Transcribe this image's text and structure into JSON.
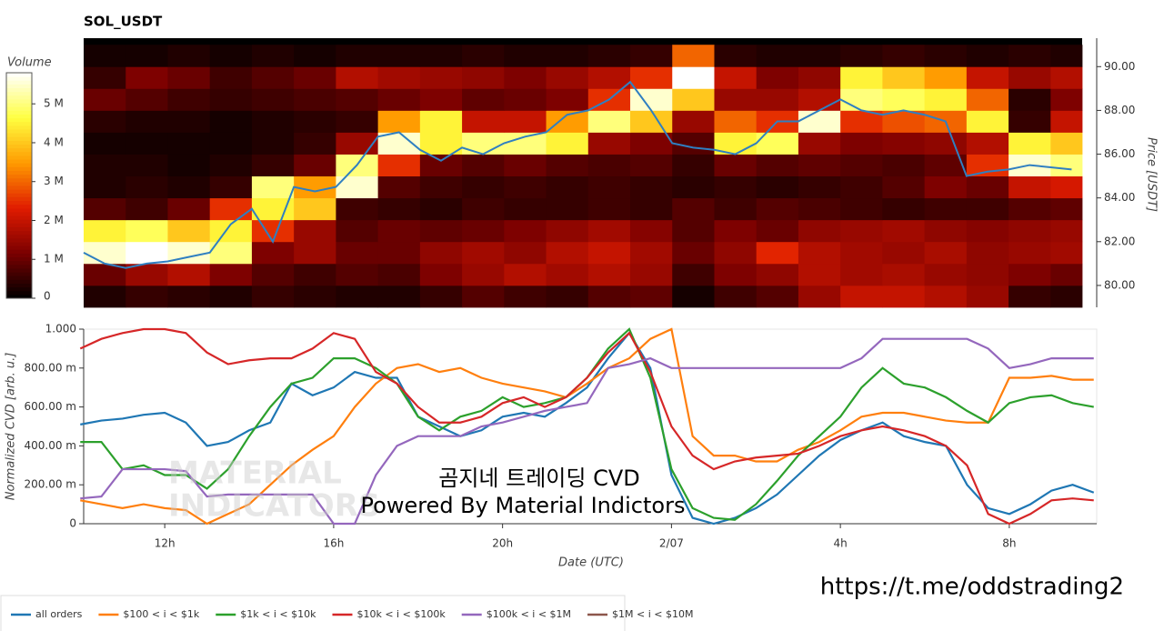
{
  "chart_data": [
    {
      "type": "heatmap",
      "title": "SOL_USDT",
      "colorbar_title": "Volume",
      "y_label": "Price [USDT]",
      "clim": [
        0,
        5.8
      ],
      "cticks": [
        0,
        {
          "value": 1,
          "label": "1 M"
        },
        {
          "value": 2,
          "label": "2 M"
        },
        {
          "value": 3,
          "label": "3 M"
        },
        {
          "value": 4,
          "label": "4 M"
        },
        {
          "value": 5,
          "label": "5 M"
        }
      ],
      "colorscale": [
        "#000000",
        "#7a0000",
        "#e01b00",
        "#ff9a00",
        "#ffff40",
        "#ffffff"
      ],
      "xlim": [
        10,
        33.75
      ],
      "ylim": [
        79,
        91.3
      ],
      "yticks": [
        {
          "value": 80,
          "label": "80.00"
        },
        {
          "value": 82,
          "label": "82.00"
        },
        {
          "value": 84,
          "label": "84.00"
        },
        {
          "value": 86,
          "label": "86.00"
        },
        {
          "value": 88,
          "label": "88.00"
        },
        {
          "value": 90,
          "label": "90.00"
        }
      ],
      "time_bins": [
        10,
        11,
        12,
        13,
        14,
        15,
        16,
        17,
        18,
        19,
        20,
        21,
        22,
        23,
        24,
        25,
        26,
        27,
        28,
        29,
        30,
        31,
        32,
        33,
        33.75
      ],
      "price_bins": [
        79,
        80,
        81,
        82,
        83,
        84,
        85,
        86,
        87,
        88,
        89,
        90,
        91
      ],
      "values": [
        [
          0.3,
          0.5,
          0.4,
          0.3,
          0.5,
          0.4,
          0.3,
          0.3,
          0.5,
          0.8,
          0.6,
          0.5,
          0.8,
          0.9,
          0.2,
          0.6,
          0.8,
          1.5,
          2.0,
          2.0,
          1.8,
          1.5,
          0.5,
          0.4
        ],
        [
          1.0,
          1.5,
          1.8,
          1.2,
          0.8,
          0.6,
          0.8,
          0.7,
          1.2,
          1.5,
          1.8,
          1.6,
          1.8,
          1.5,
          0.6,
          1.2,
          1.4,
          1.8,
          1.6,
          1.7,
          1.5,
          1.4,
          1.2,
          1.0
        ],
        [
          5.5,
          5.8,
          5.5,
          5.0,
          1.2,
          1.5,
          1.0,
          1.0,
          1.4,
          1.6,
          1.4,
          1.8,
          2.0,
          1.6,
          1.0,
          1.4,
          2.4,
          1.8,
          1.6,
          1.5,
          1.7,
          1.4,
          1.5,
          1.6
        ],
        [
          4.5,
          4.8,
          4.0,
          4.5,
          2.5,
          1.5,
          0.8,
          1.0,
          0.9,
          1.0,
          1.2,
          1.4,
          1.6,
          1.3,
          0.8,
          1.2,
          1.0,
          1.4,
          1.5,
          1.6,
          1.4,
          1.3,
          1.4,
          1.5
        ],
        [
          0.8,
          0.6,
          1.0,
          2.5,
          4.5,
          4.0,
          0.6,
          0.5,
          0.4,
          0.6,
          0.5,
          0.5,
          0.6,
          0.5,
          0.8,
          0.6,
          0.8,
          0.7,
          0.6,
          0.5,
          0.6,
          0.6,
          0.8,
          0.9
        ],
        [
          0.3,
          0.4,
          0.3,
          0.5,
          5.0,
          3.5,
          5.5,
          0.8,
          0.6,
          0.5,
          0.6,
          0.5,
          0.6,
          0.5,
          0.4,
          0.5,
          0.4,
          0.5,
          0.6,
          0.8,
          1.2,
          1.0,
          2.0,
          2.2
        ],
        [
          0.3,
          0.3,
          0.2,
          0.3,
          0.5,
          1.0,
          5.0,
          2.5,
          1.0,
          0.8,
          1.0,
          0.8,
          0.7,
          0.8,
          0.5,
          1.0,
          0.8,
          0.9,
          0.8,
          0.7,
          0.9,
          2.5,
          5.5,
          5.0
        ],
        [
          0.2,
          0.2,
          0.2,
          0.2,
          0.3,
          0.5,
          1.5,
          5.5,
          4.5,
          5.0,
          5.0,
          4.5,
          1.5,
          1.2,
          0.8,
          4.5,
          4.8,
          1.5,
          1.2,
          1.3,
          1.4,
          1.8,
          4.5,
          4.0
        ],
        [
          0.4,
          0.3,
          0.3,
          0.2,
          0.3,
          0.4,
          0.5,
          3.5,
          4.5,
          2.0,
          2.0,
          3.5,
          5.0,
          4.0,
          1.5,
          3.0,
          2.5,
          5.5,
          2.5,
          2.8,
          3.0,
          4.5,
          0.5,
          2.0
        ],
        [
          1.0,
          0.8,
          0.6,
          0.5,
          0.6,
          0.7,
          0.8,
          1.0,
          1.2,
          0.9,
          1.0,
          1.2,
          2.5,
          5.5,
          4.0,
          1.5,
          1.5,
          1.8,
          5.0,
          4.8,
          4.5,
          3.0,
          0.4,
          1.2
        ],
        [
          0.5,
          1.2,
          1.0,
          0.6,
          0.8,
          1.0,
          1.8,
          1.6,
          1.5,
          1.4,
          1.2,
          1.5,
          1.8,
          2.5,
          6.0,
          2.0,
          1.2,
          1.4,
          4.5,
          4.0,
          3.5,
          2.0,
          1.5,
          1.8
        ],
        [
          0.2,
          0.2,
          0.3,
          0.2,
          0.3,
          0.2,
          0.3,
          0.3,
          0.3,
          0.4,
          0.3,
          0.3,
          0.4,
          0.5,
          3.0,
          0.4,
          0.3,
          0.3,
          0.4,
          0.5,
          0.4,
          0.3,
          0.4,
          0.3
        ]
      ],
      "price": {
        "color": "#2f7fc1",
        "x": [
          10,
          10.5,
          11,
          11.5,
          12,
          12.5,
          13,
          13.5,
          14,
          14.5,
          15,
          15.5,
          16,
          16.5,
          17,
          17.5,
          18,
          18.5,
          19,
          19.5,
          20,
          20.5,
          21,
          21.5,
          22,
          22.5,
          23,
          23.5,
          24,
          24.5,
          25,
          25.5,
          26,
          26.5,
          27,
          27.5,
          28,
          28.5,
          29,
          29.5,
          30,
          30.5,
          31,
          31.5,
          32,
          32.5,
          33,
          33.5
        ],
        "values": [
          81.5,
          81.0,
          80.8,
          81.0,
          81.1,
          81.3,
          81.5,
          82.8,
          83.5,
          82.0,
          84.5,
          84.3,
          84.5,
          85.5,
          86.8,
          87.0,
          86.2,
          85.7,
          86.3,
          86.0,
          86.5,
          86.8,
          87.0,
          87.8,
          88.0,
          88.5,
          89.3,
          88.0,
          86.5,
          86.3,
          86.2,
          86.0,
          86.5,
          87.5,
          87.5,
          88.0,
          88.5,
          88.0,
          87.8,
          88.0,
          87.8,
          87.5,
          85.0,
          85.2,
          85.3,
          85.5,
          85.4,
          85.3
        ]
      }
    },
    {
      "type": "line",
      "x_label": "Date (UTC)",
      "y_label": "Normalized CVD [arb. u.]",
      "xlim": [
        10.08,
        34.07
      ],
      "ylim": [
        0,
        1
      ],
      "xticks": [
        {
          "value": 12,
          "label": "12h"
        },
        {
          "value": 16,
          "label": "16h"
        },
        {
          "value": 20,
          "label": "20h"
        },
        {
          "value": 24,
          "label": "2/07"
        },
        {
          "value": 28,
          "label": "4h"
        },
        {
          "value": 32,
          "label": "8h"
        }
      ],
      "yticks": [
        0,
        {
          "value": 0.2,
          "label": "200.00 m"
        },
        {
          "value": 0.4,
          "label": "400.00 m"
        },
        {
          "value": 0.6,
          "label": "600.00 m"
        },
        {
          "value": 0.8,
          "label": "800.00 m"
        },
        {
          "value": 1,
          "label": "1.000"
        }
      ],
      "x": [
        10,
        10.5,
        11,
        11.5,
        12,
        12.5,
        13,
        13.5,
        14,
        14.5,
        15,
        15.5,
        16,
        16.5,
        17,
        17.5,
        18,
        18.5,
        19,
        19.5,
        20,
        20.5,
        21,
        21.5,
        22,
        22.5,
        23,
        23.5,
        24,
        24.5,
        25,
        25.5,
        26,
        26.5,
        27,
        27.5,
        28,
        28.5,
        29,
        29.5,
        30,
        30.5,
        31,
        31.5,
        32,
        32.5,
        33,
        33.5,
        34
      ],
      "series": [
        {
          "name": "all orders",
          "color": "#1f77b4",
          "values": [
            0.51,
            0.53,
            0.54,
            0.56,
            0.57,
            0.52,
            0.4,
            0.42,
            0.48,
            0.52,
            0.72,
            0.66,
            0.7,
            0.78,
            0.75,
            0.75,
            0.55,
            0.5,
            0.45,
            0.48,
            0.55,
            0.57,
            0.55,
            0.62,
            0.7,
            0.85,
            0.98,
            0.8,
            0.25,
            0.03,
            0.0,
            0.03,
            0.08,
            0.15,
            0.25,
            0.35,
            0.43,
            0.48,
            0.52,
            0.45,
            0.42,
            0.4,
            0.2,
            0.08,
            0.05,
            0.1,
            0.17,
            0.2,
            0.16
          ]
        },
        {
          "name": "$100 < i < $1k",
          "color": "#ff7f0e",
          "values": [
            0.12,
            0.1,
            0.08,
            0.1,
            0.08,
            0.07,
            0.0,
            0.05,
            0.1,
            0.2,
            0.3,
            0.38,
            0.45,
            0.6,
            0.72,
            0.8,
            0.82,
            0.78,
            0.8,
            0.75,
            0.72,
            0.7,
            0.68,
            0.65,
            0.72,
            0.8,
            0.85,
            0.95,
            1.0,
            0.45,
            0.35,
            0.35,
            0.32,
            0.32,
            0.38,
            0.42,
            0.48,
            0.55,
            0.57,
            0.57,
            0.55,
            0.53,
            0.52,
            0.52,
            0.75,
            0.75,
            0.76,
            0.74,
            0.74
          ]
        },
        {
          "name": "$1k < i < $10k",
          "color": "#2ca02c",
          "values": [
            0.42,
            0.42,
            0.28,
            0.3,
            0.25,
            0.25,
            0.18,
            0.28,
            0.45,
            0.6,
            0.72,
            0.75,
            0.85,
            0.85,
            0.8,
            0.72,
            0.55,
            0.48,
            0.55,
            0.58,
            0.65,
            0.6,
            0.62,
            0.65,
            0.75,
            0.9,
            1.0,
            0.75,
            0.28,
            0.08,
            0.03,
            0.02,
            0.1,
            0.22,
            0.35,
            0.45,
            0.55,
            0.7,
            0.8,
            0.72,
            0.7,
            0.65,
            0.58,
            0.52,
            0.62,
            0.65,
            0.66,
            0.62,
            0.6
          ]
        },
        {
          "name": "$10k < i < $100k",
          "color": "#d62728",
          "values": [
            0.9,
            0.95,
            0.98,
            1.0,
            1.0,
            0.98,
            0.88,
            0.82,
            0.84,
            0.85,
            0.85,
            0.9,
            0.98,
            0.95,
            0.78,
            0.72,
            0.6,
            0.52,
            0.52,
            0.55,
            0.62,
            0.65,
            0.6,
            0.65,
            0.75,
            0.88,
            0.98,
            0.78,
            0.5,
            0.35,
            0.28,
            0.32,
            0.34,
            0.35,
            0.36,
            0.4,
            0.45,
            0.48,
            0.5,
            0.48,
            0.45,
            0.4,
            0.3,
            0.05,
            0.0,
            0.05,
            0.12,
            0.13,
            0.12
          ]
        },
        {
          "name": "$100k < i < $1M",
          "color": "#9467bd",
          "values": [
            0.13,
            0.14,
            0.28,
            0.28,
            0.28,
            0.27,
            0.14,
            0.15,
            0.15,
            0.15,
            0.15,
            0.15,
            0.0,
            0.0,
            0.25,
            0.4,
            0.45,
            0.45,
            0.45,
            0.5,
            0.52,
            0.55,
            0.58,
            0.6,
            0.62,
            0.8,
            0.82,
            0.85,
            0.8,
            0.8,
            0.8,
            0.8,
            0.8,
            0.8,
            0.8,
            0.8,
            0.8,
            0.85,
            0.95,
            0.95,
            0.95,
            0.95,
            0.95,
            0.9,
            0.8,
            0.82,
            0.85,
            0.85,
            0.85
          ]
        },
        {
          "name": "$1M < i < $10M",
          "color": "#8c564b",
          "values": [
            null,
            null,
            null,
            null,
            null,
            null,
            null,
            null,
            null,
            null,
            null,
            null,
            null,
            null,
            null,
            null,
            null,
            null,
            null,
            null,
            null,
            null,
            null,
            null,
            null,
            null,
            null,
            null,
            null,
            null,
            null,
            null,
            null,
            null,
            null,
            null,
            null,
            null,
            null,
            null,
            null,
            null,
            null,
            null,
            null,
            null,
            null,
            null,
            null
          ]
        }
      ]
    }
  ],
  "overlay": {
    "watermark": [
      "MATERIAL",
      "INDICATORS"
    ],
    "lines": [
      "곰지네 트레이딩 CVD",
      "Powered By Material Indictors"
    ],
    "link": "https://t.me/oddstrading2"
  }
}
